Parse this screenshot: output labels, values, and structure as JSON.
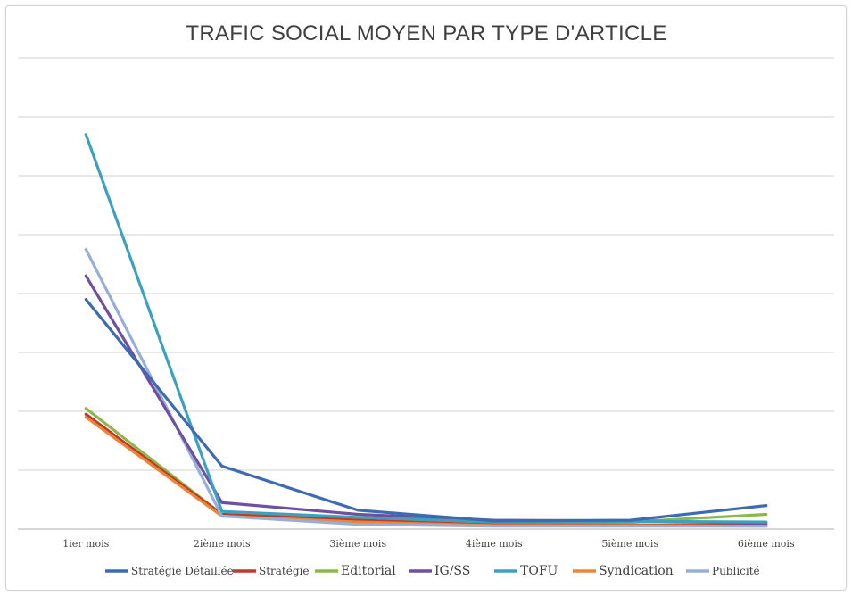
{
  "chart_data": {
    "type": "line",
    "title": "TRAFIC SOCIAL MOYEN PAR TYPE D'ARTICLE",
    "xlabel": "",
    "ylabel": "",
    "categories": [
      "1ier mois",
      "2ième mois",
      "3ième mois",
      "4ième mois",
      "5ième mois",
      "6ième mois"
    ],
    "ylim": [
      0,
      8
    ],
    "y_gridlines": 8,
    "y_tick_labels_visible": false,
    "grid": true,
    "legend_position": "bottom",
    "series": [
      {
        "name": "Stratégie Détaillée",
        "color": "#3d6bb3",
        "values": [
          3.9,
          1.07,
          0.32,
          0.14,
          0.15,
          0.4
        ]
      },
      {
        "name": "Stratégie",
        "color": "#c0392b",
        "values": [
          1.95,
          0.25,
          0.15,
          0.07,
          0.07,
          0.07
        ]
      },
      {
        "name": "Editorial",
        "color": "#8cb84a",
        "values": [
          2.05,
          0.25,
          0.17,
          0.1,
          0.12,
          0.25
        ]
      },
      {
        "name": "IG/SS",
        "color": "#6f4fa0",
        "values": [
          4.3,
          0.45,
          0.25,
          0.15,
          0.14,
          0.1
        ]
      },
      {
        "name": "TOFU",
        "color": "#3ea0bf",
        "values": [
          6.7,
          0.3,
          0.2,
          0.12,
          0.13,
          0.12
        ]
      },
      {
        "name": "Syndication",
        "color": "#e8873a",
        "values": [
          1.9,
          0.22,
          0.12,
          0.06,
          0.06,
          0.05
        ]
      },
      {
        "name": "Publicité",
        "color": "#97afd8",
        "values": [
          4.75,
          0.22,
          0.08,
          0.05,
          0.05,
          0.05
        ]
      }
    ]
  }
}
